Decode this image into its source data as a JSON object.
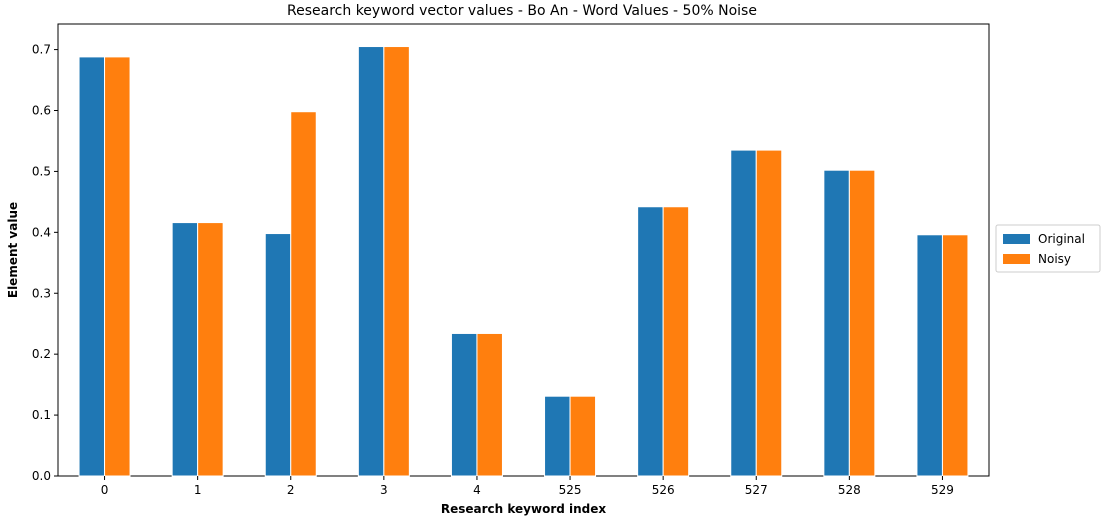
{
  "chart_data": {
    "type": "bar",
    "title": "Research keyword vector values - Bo An - Word Values - 50% Noise",
    "xlabel": "Research keyword index",
    "ylabel": "Element value",
    "categories": [
      "0",
      "1",
      "2",
      "3",
      "4",
      "525",
      "526",
      "527",
      "528",
      "529"
    ],
    "series": [
      {
        "name": "Original",
        "color": "#1f77b4",
        "values": [
          0.688,
          0.416,
          0.398,
          0.705,
          0.234,
          0.131,
          0.442,
          0.535,
          0.502,
          0.396
        ]
      },
      {
        "name": "Noisy",
        "color": "#ff7f0e",
        "values": [
          0.688,
          0.416,
          0.598,
          0.705,
          0.234,
          0.131,
          0.442,
          0.535,
          0.502,
          0.396
        ]
      }
    ],
    "ylim": [
      0,
      0.742
    ],
    "yticks": [
      "0.0",
      "0.1",
      "0.2",
      "0.3",
      "0.4",
      "0.5",
      "0.6",
      "0.7"
    ],
    "grid": false,
    "legend_position": "outside-right"
  }
}
